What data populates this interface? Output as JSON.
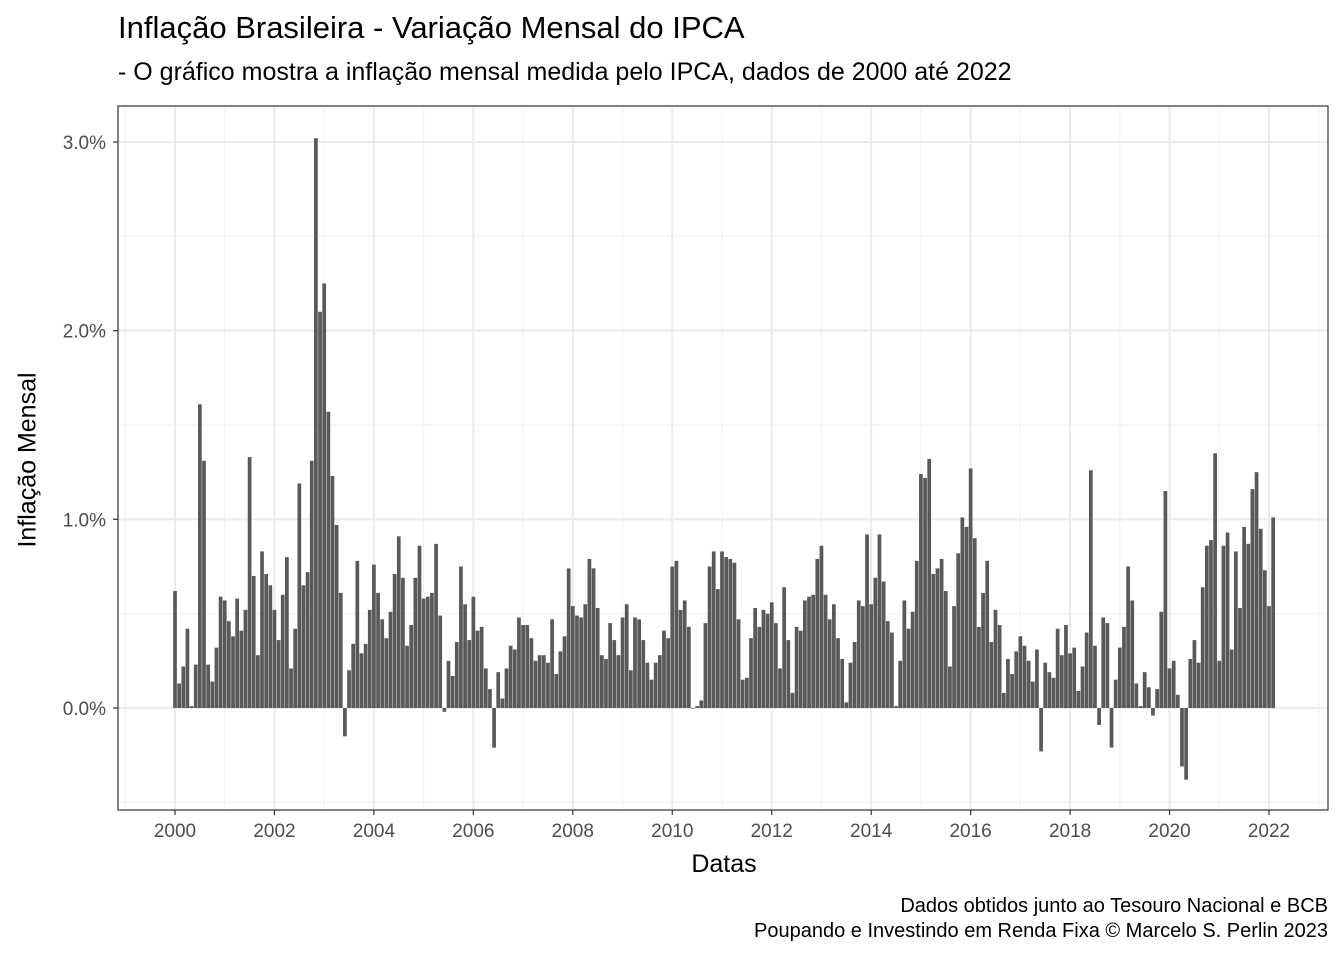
{
  "chart_data": {
    "type": "bar",
    "title": "Inflação Brasileira - Variação Mensal do IPCA",
    "subtitle": "- O gráfico mostra a inflação mensal medida pelo IPCA, dados de 2000 até 2022",
    "xlabel": "Datas",
    "ylabel": "Inflação Mensal",
    "caption_line1": "Dados obtidos junto ao Tesouro Nacional e BCB",
    "caption_line2": "Poupando e Investindo em Renda Fixa © Marcelo S. Perlin 2023",
    "start": "2000-01",
    "frequency": "monthly",
    "unit": "%",
    "ylim": [
      -0.55,
      3.18
    ],
    "xlim_years": [
      1999.1,
      2022.6
    ],
    "yticks": [
      0.0,
      1.0,
      2.0,
      3.0
    ],
    "ytick_labels": [
      "0.0%",
      "1.0%",
      "2.0%",
      "3.0%"
    ],
    "xticks": [
      2000,
      2002,
      2004,
      2006,
      2008,
      2010,
      2012,
      2014,
      2016,
      2018,
      2020,
      2022
    ],
    "xtick_labels": [
      "2000",
      "2002",
      "2004",
      "2006",
      "2008",
      "2010",
      "2012",
      "2014",
      "2016",
      "2018",
      "2020",
      "2022"
    ],
    "grid": true,
    "bar_color": "#595959",
    "values": [
      0.62,
      0.13,
      0.22,
      0.42,
      0.01,
      0.23,
      1.61,
      1.31,
      0.23,
      0.14,
      0.32,
      0.59,
      0.57,
      0.46,
      0.38,
      0.58,
      0.41,
      0.52,
      1.33,
      0.7,
      0.28,
      0.83,
      0.71,
      0.65,
      0.52,
      0.36,
      0.6,
      0.8,
      0.21,
      0.42,
      1.19,
      0.65,
      0.72,
      1.31,
      3.02,
      2.1,
      2.25,
      1.57,
      1.23,
      0.97,
      0.61,
      -0.15,
      0.2,
      0.34,
      0.78,
      0.29,
      0.34,
      0.52,
      0.76,
      0.61,
      0.47,
      0.37,
      0.51,
      0.71,
      0.91,
      0.69,
      0.33,
      0.44,
      0.69,
      0.86,
      0.58,
      0.59,
      0.61,
      0.87,
      0.49,
      -0.02,
      0.25,
      0.17,
      0.35,
      0.75,
      0.55,
      0.36,
      0.59,
      0.41,
      0.43,
      0.21,
      0.1,
      -0.21,
      0.19,
      0.05,
      0.21,
      0.33,
      0.31,
      0.48,
      0.44,
      0.44,
      0.37,
      0.25,
      0.28,
      0.28,
      0.24,
      0.47,
      0.18,
      0.3,
      0.38,
      0.74,
      0.54,
      0.49,
      0.48,
      0.55,
      0.79,
      0.74,
      0.53,
      0.28,
      0.26,
      0.45,
      0.36,
      0.28,
      0.48,
      0.55,
      0.2,
      0.48,
      0.47,
      0.36,
      0.24,
      0.15,
      0.24,
      0.28,
      0.41,
      0.37,
      0.75,
      0.78,
      0.52,
      0.57,
      0.43,
      0.0,
      0.01,
      0.04,
      0.45,
      0.75,
      0.83,
      0.63,
      0.83,
      0.8,
      0.79,
      0.77,
      0.47,
      0.15,
      0.16,
      0.37,
      0.53,
      0.43,
      0.52,
      0.5,
      0.56,
      0.45,
      0.21,
      0.64,
      0.36,
      0.08,
      0.43,
      0.41,
      0.57,
      0.59,
      0.6,
      0.79,
      0.86,
      0.6,
      0.47,
      0.55,
      0.37,
      0.26,
      0.03,
      0.24,
      0.35,
      0.57,
      0.54,
      0.92,
      0.55,
      0.69,
      0.92,
      0.67,
      0.46,
      0.4,
      0.01,
      0.25,
      0.57,
      0.42,
      0.51,
      0.78,
      1.24,
      1.22,
      1.32,
      0.71,
      0.74,
      0.79,
      0.62,
      0.22,
      0.54,
      0.82,
      1.01,
      0.96,
      1.27,
      0.9,
      0.43,
      0.61,
      0.78,
      0.35,
      0.52,
      0.44,
      0.08,
      0.26,
      0.18,
      0.3,
      0.38,
      0.33,
      0.25,
      0.14,
      0.31,
      -0.23,
      0.24,
      0.19,
      0.16,
      0.42,
      0.28,
      0.44,
      0.29,
      0.32,
      0.09,
      0.22,
      0.4,
      1.26,
      0.33,
      -0.09,
      0.48,
      0.45,
      -0.21,
      0.15,
      0.32,
      0.43,
      0.75,
      0.57,
      0.13,
      0.01,
      0.19,
      0.11,
      -0.04,
      0.1,
      0.51,
      1.15,
      0.21,
      0.25,
      0.07,
      -0.31,
      -0.38,
      0.26,
      0.36,
      0.24,
      0.64,
      0.86,
      0.89,
      1.35,
      0.25,
      0.86,
      0.93,
      0.31,
      0.83,
      0.53,
      0.96,
      0.87,
      1.16,
      1.25,
      0.95,
      0.73,
      0.54,
      1.01
    ]
  }
}
